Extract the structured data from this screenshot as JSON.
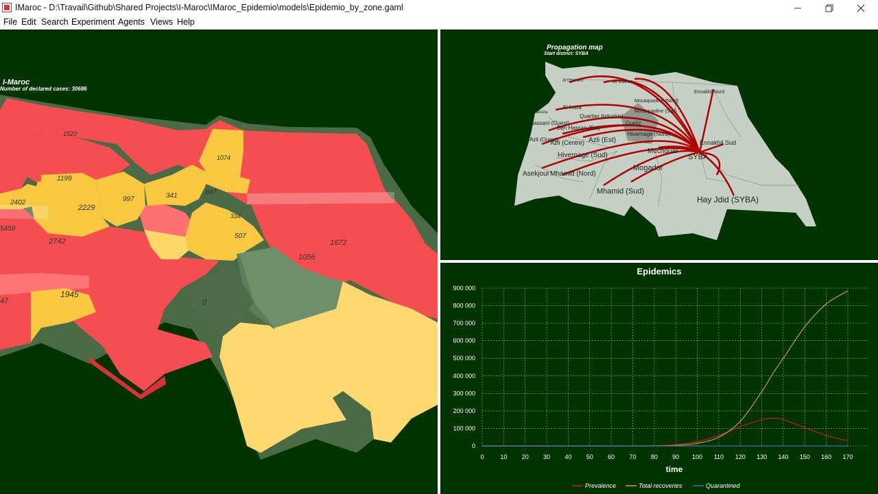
{
  "window": {
    "title": "IMaroc - D:\\Travail\\Github\\Shared Projects\\I-Maroc\\IMaroc_Epidemio\\models\\Epidemio_by_zone.gaml",
    "controls": [
      "minimize-icon",
      "restore-icon",
      "close-icon"
    ]
  },
  "menu": [
    "File",
    "Edit",
    "Search",
    "Experiment",
    "Agents",
    "Views",
    "Help"
  ],
  "left_map": {
    "title": "I-Maroc",
    "subtitle": "Number of declared cases: 30686",
    "labels": [
      "1520",
      "1074",
      "1199",
      "2229",
      "997",
      "341",
      "847",
      "2402",
      "334",
      "507",
      "5459",
      "2742",
      "1672",
      "1056",
      "1945",
      "0",
      "47"
    ]
  },
  "propagation": {
    "title": "Propagation map",
    "subtitle": "Start district: SYBA",
    "districts": [
      "Hay Jdid (SYBA)",
      "SYBA",
      "Mhamid (Sud)",
      "Mogador",
      "Mhamid (Nord)",
      "Asekjour",
      "Hivernage (Sud)",
      "Mechouar",
      "Azli (Est)",
      "Azli (Centre)",
      "Azli (Ouest)",
      "Ennakhil Sud",
      "Ennakhil Nord",
      "Al Izdihar",
      "Al Massira",
      "Al Ghanem",
      "Quartier Industriel",
      "Gueliz",
      "Hay Hassani (Ouest)",
      "Hivernage (Nord)",
      "Al Inara",
      "Mouaquadine (Nord)",
      "Mouaquadine (Sud)",
      "Ben Hassan (Est)"
    ]
  },
  "chart_data": {
    "type": "line",
    "title": "Epidemics",
    "xlabel": "time",
    "ylabel": "",
    "x": [
      0,
      10,
      20,
      30,
      40,
      50,
      60,
      70,
      80,
      90,
      100,
      110,
      120,
      130,
      135,
      140,
      150,
      160,
      170
    ],
    "xlim": [
      0,
      170
    ],
    "ylim": [
      0,
      900000
    ],
    "x_ticks": [
      "0",
      "10",
      "20",
      "30",
      "40",
      "50",
      "60",
      "70",
      "80",
      "90",
      "100",
      "110",
      "120",
      "130",
      "140",
      "150",
      "160",
      "170"
    ],
    "y_ticks": [
      "0",
      "100 000",
      "200 000",
      "300 000",
      "400 000",
      "500 000",
      "600 000",
      "700 000",
      "800 000",
      "900 000"
    ],
    "grid": true,
    "legend_position": "bottom",
    "series": [
      {
        "name": "Prevalence",
        "color": "#cc1a1a",
        "values": [
          0,
          0,
          0,
          0,
          0,
          0,
          0,
          200,
          1500,
          8000,
          25000,
          60000,
          110000,
          150000,
          158000,
          150000,
          105000,
          60000,
          30000
        ]
      },
      {
        "name": "Total recoveries",
        "color": "#c9a227",
        "values": [
          0,
          0,
          0,
          0,
          0,
          0,
          0,
          0,
          500,
          3000,
          15000,
          50000,
          140000,
          310000,
          410000,
          500000,
          680000,
          810000,
          885000
        ]
      },
      {
        "name": "Quarantined",
        "color": "#3a6fb0",
        "values": [
          0,
          0,
          0,
          0,
          0,
          0,
          0,
          0,
          0,
          0,
          0,
          0,
          0,
          0,
          0,
          0,
          0,
          0,
          0
        ]
      }
    ]
  }
}
